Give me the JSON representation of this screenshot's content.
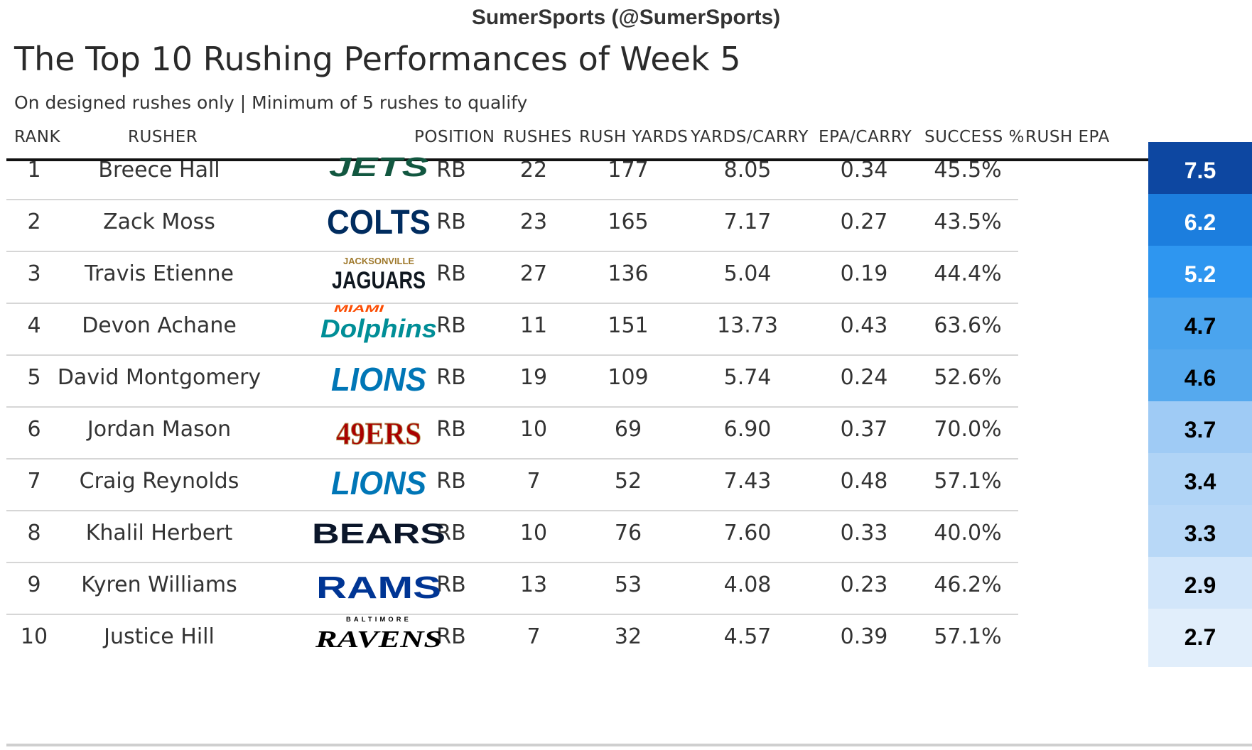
{
  "header": {
    "credit": "SumerSports (@SumerSports)",
    "title": "The Top 10 Rushing Performances of Week 5",
    "subtitle": "On designed rushes only | Minimum of 5 rushes to qualify"
  },
  "columns": {
    "rank": "RANK",
    "rusher": "RUSHER",
    "position": "POSITION",
    "rushes": "RUSHES",
    "rush_yards": "RUSH YARDS",
    "yards_carry": "YARDS/CARRY",
    "epa_carry": "EPA/CARRY",
    "success": "SUCCESS %",
    "rush_epa": "RUSH EPA"
  },
  "chart_data": {
    "type": "table",
    "title": "The Top 10 Rushing Performances of Week 5",
    "subtitle": "On designed rushes only | Minimum of 5 rushes to qualify",
    "rows": [
      {
        "rank": "1",
        "rusher": "Breece Hall",
        "team_logo": "JETS",
        "position": "RB",
        "rushes": "22",
        "rush_yards": "177",
        "yards_carry": "8.05",
        "epa_carry": "0.34",
        "success": "45.5%",
        "rush_epa": "7.5",
        "epa_bg": "#0d47a1",
        "epa_fg": "#ffffff"
      },
      {
        "rank": "2",
        "rusher": "Zack Moss",
        "team_logo": "COLTS",
        "position": "RB",
        "rushes": "23",
        "rush_yards": "165",
        "yards_carry": "7.17",
        "epa_carry": "0.27",
        "success": "43.5%",
        "rush_epa": "6.2",
        "epa_bg": "#1c7ede",
        "epa_fg": "#ffffff"
      },
      {
        "rank": "3",
        "rusher": "Travis Etienne",
        "team_logo": "JAGUARS",
        "position": "RB",
        "rushes": "27",
        "rush_yards": "136",
        "yards_carry": "5.04",
        "epa_carry": "0.19",
        "success": "44.4%",
        "rush_epa": "5.2",
        "epa_bg": "#2e96f0",
        "epa_fg": "#ffffff"
      },
      {
        "rank": "4",
        "rusher": "Devon Achane",
        "team_logo": "DOLPHINS",
        "position": "RB",
        "rushes": "11",
        "rush_yards": "151",
        "yards_carry": "13.73",
        "epa_carry": "0.43",
        "success": "63.6%",
        "rush_epa": "4.7",
        "epa_bg": "#4aa4ee",
        "epa_fg": "#000000"
      },
      {
        "rank": "5",
        "rusher": "David Montgomery",
        "team_logo": "LIONS",
        "position": "RB",
        "rushes": "19",
        "rush_yards": "109",
        "yards_carry": "5.74",
        "epa_carry": "0.24",
        "success": "52.6%",
        "rush_epa": "4.6",
        "epa_bg": "#55a9ee",
        "epa_fg": "#000000"
      },
      {
        "rank": "6",
        "rusher": "Jordan Mason",
        "team_logo": "49ERS",
        "position": "RB",
        "rushes": "10",
        "rush_yards": "69",
        "yards_carry": "6.90",
        "epa_carry": "0.37",
        "success": "70.0%",
        "rush_epa": "3.7",
        "epa_bg": "#9fcbf5",
        "epa_fg": "#000000"
      },
      {
        "rank": "7",
        "rusher": "Craig Reynolds",
        "team_logo": "LIONS",
        "position": "RB",
        "rushes": "7",
        "rush_yards": "52",
        "yards_carry": "7.43",
        "epa_carry": "0.48",
        "success": "57.1%",
        "rush_epa": "3.4",
        "epa_bg": "#b0d4f6",
        "epa_fg": "#000000"
      },
      {
        "rank": "8",
        "rusher": "Khalil Herbert",
        "team_logo": "BEARS",
        "position": "RB",
        "rushes": "10",
        "rush_yards": "76",
        "yards_carry": "7.60",
        "epa_carry": "0.33",
        "success": "40.0%",
        "rush_epa": "3.3",
        "epa_bg": "#b8d8f7",
        "epa_fg": "#000000"
      },
      {
        "rank": "9",
        "rusher": "Kyren Williams",
        "team_logo": "RAMS",
        "position": "RB",
        "rushes": "13",
        "rush_yards": "53",
        "yards_carry": "4.08",
        "epa_carry": "0.23",
        "success": "46.2%",
        "rush_epa": "2.9",
        "epa_bg": "#d2e6fa",
        "epa_fg": "#000000"
      },
      {
        "rank": "10",
        "rusher": "Justice Hill",
        "team_logo": "RAVENS",
        "position": "RB",
        "rushes": "7",
        "rush_yards": "32",
        "yards_carry": "4.57",
        "epa_carry": "0.39",
        "success": "57.1%",
        "rush_epa": "2.7",
        "epa_bg": "#e1eefb",
        "epa_fg": "#000000"
      }
    ]
  },
  "logos": {
    "JETS": {
      "text": "JETS",
      "color": "#125740"
    },
    "COLTS": {
      "text": "COLTS",
      "color": "#002c5f"
    },
    "JAGUARS": {
      "text": "JAGUARS",
      "small": "JACKSONVILLE",
      "color": "#101820",
      "accent": "#9f792c"
    },
    "DOLPHINS": {
      "text": "Dolphins",
      "small": "MIAMI",
      "color": "#008e97",
      "accent": "#fc4c02"
    },
    "LIONS": {
      "text": "LIONS",
      "color": "#0076b6"
    },
    "49ERS": {
      "text": "49ERS",
      "color": "#aa0000",
      "accent": "#b3995d"
    },
    "BEARS": {
      "text": "BEARS",
      "color": "#0b162a"
    },
    "RAMS": {
      "text": "RAMS",
      "color": "#003594"
    },
    "RAVENS": {
      "text": "RAVENS",
      "small": "BALTIMORE",
      "color": "#000000",
      "accent": "#9e7c0c"
    }
  }
}
